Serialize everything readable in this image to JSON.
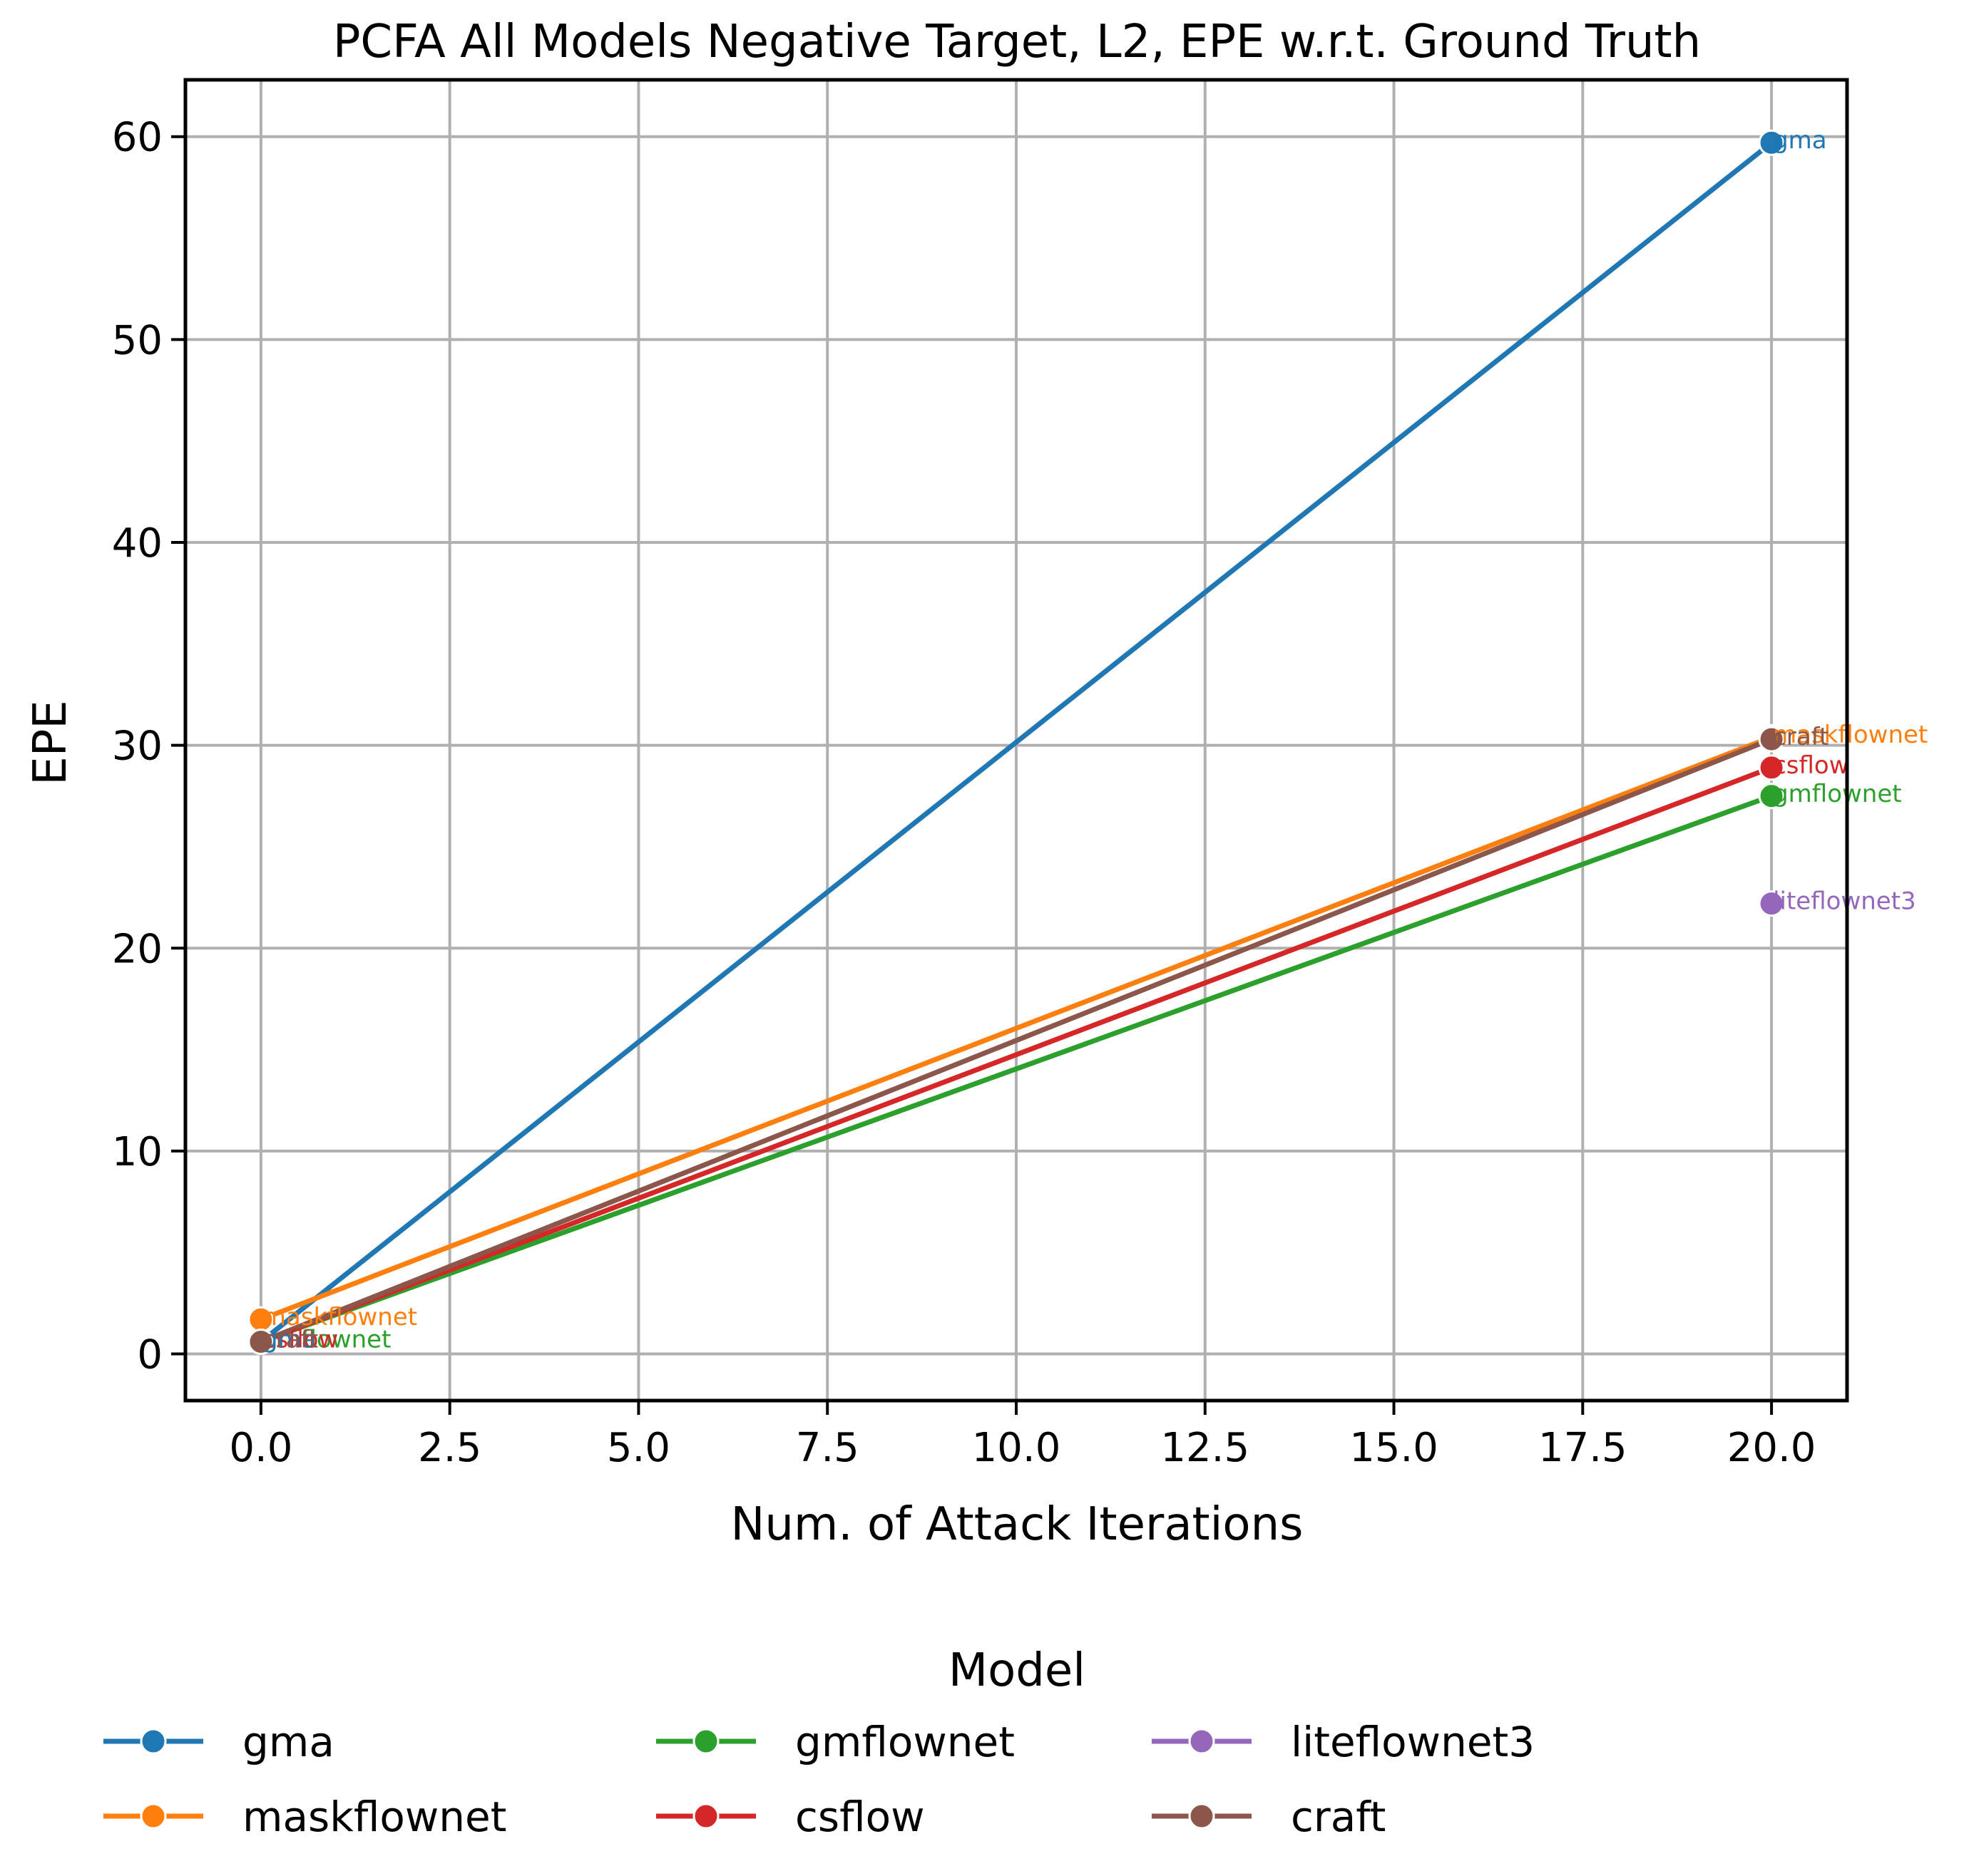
{
  "chart_data": {
    "type": "line",
    "title": "PCFA All Models Negative Target, L2, EPE w.r.t. Ground Truth",
    "xlabel": "Num. of Attack Iterations",
    "ylabel": "EPE",
    "xlim": [
      -1,
      21
    ],
    "ylim": [
      -2.3,
      62.8
    ],
    "xticks": [
      0.0,
      2.5,
      5.0,
      7.5,
      10.0,
      12.5,
      15.0,
      17.5,
      20.0
    ],
    "xtick_labels": [
      "0.0",
      "2.5",
      "5.0",
      "7.5",
      "10.0",
      "12.5",
      "15.0",
      "17.5",
      "20.0"
    ],
    "yticks": [
      0,
      10,
      20,
      30,
      40,
      50,
      60
    ],
    "ytick_labels": [
      "0",
      "10",
      "20",
      "30",
      "40",
      "50",
      "60"
    ],
    "grid": true,
    "legend": {
      "title": "Model",
      "placement": "bottom-center",
      "columns": 4
    },
    "series": [
      {
        "name": "gma",
        "color": "#1f77b4",
        "x": [
          0,
          20
        ],
        "y": [
          0.6,
          59.7
        ]
      },
      {
        "name": "maskflownet",
        "color": "#ff7f0e",
        "x": [
          0,
          20
        ],
        "y": [
          1.7,
          30.4
        ]
      },
      {
        "name": "gmflownet",
        "color": "#2ca02c",
        "x": [
          0,
          20
        ],
        "y": [
          0.6,
          27.5
        ]
      },
      {
        "name": "csflow",
        "color": "#d62728",
        "x": [
          0,
          20
        ],
        "y": [
          0.6,
          28.9
        ]
      },
      {
        "name": "liteflownet3",
        "color": "#9467bd",
        "x": [
          20
        ],
        "y": [
          22.2
        ]
      },
      {
        "name": "craft",
        "color": "#8c564b",
        "x": [
          0,
          20
        ],
        "y": [
          0.6,
          30.3
        ]
      }
    ],
    "annotations": [
      {
        "text": "gma",
        "series": "gma",
        "x": 20,
        "y": 59.7
      },
      {
        "text": "maskflownet",
        "series": "maskflownet",
        "x": 20,
        "y": 30.4
      },
      {
        "text": "craft",
        "series": "craft",
        "x": 20,
        "y": 30.3
      },
      {
        "text": "csflow",
        "series": "csflow",
        "x": 20,
        "y": 28.9
      },
      {
        "text": "gmflownet",
        "series": "gmflownet",
        "x": 20,
        "y": 27.5
      },
      {
        "text": "liteflownet3",
        "series": "liteflownet3",
        "x": 20,
        "y": 22.2
      },
      {
        "text": "maskflownet",
        "series": "maskflownet",
        "x": 0,
        "y": 1.7
      },
      {
        "text": "gmflownet",
        "series": "gmflownet",
        "x": 0,
        "y": 0.6
      },
      {
        "text": "csflow",
        "series": "csflow",
        "x": 0,
        "y": 0.6
      },
      {
        "text": "gma",
        "series": "gma",
        "x": 0,
        "y": 0.6
      },
      {
        "text": "craft",
        "series": "craft",
        "x": 0,
        "y": 0.6
      }
    ]
  }
}
